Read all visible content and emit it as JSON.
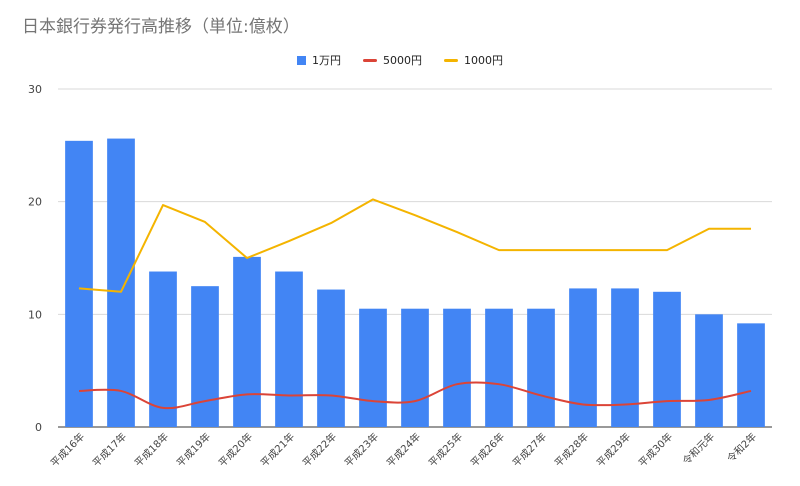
{
  "colors": {
    "bar": "#4285f4",
    "line5000": "#db4437",
    "line1000": "#f4b400",
    "grid": "#d9d9d9",
    "axis_text": "#444444",
    "title": "#757575"
  },
  "chart_data": {
    "type": "bar",
    "title": "日本銀行券発行高推移（単位:億枚）",
    "xlabel": "",
    "ylabel": "",
    "ylim": [
      0,
      30
    ],
    "yticks": [
      "0",
      "10",
      "20",
      "30"
    ],
    "grid": true,
    "legend_position": "top",
    "categories": [
      "平成16年",
      "平成17年",
      "平成18年",
      "平成19年",
      "平成20年",
      "平成21年",
      "平成22年",
      "平成23年",
      "平成24年",
      "平成25年",
      "平成26年",
      "平成27年",
      "平成28年",
      "平成29年",
      "平成30年",
      "令和元年",
      "令和2年"
    ],
    "series": [
      {
        "name": "1万円",
        "type": "bar",
        "values": [
          25.4,
          25.6,
          13.8,
          12.5,
          15.1,
          13.8,
          12.2,
          10.5,
          10.5,
          10.5,
          10.5,
          10.5,
          12.3,
          12.3,
          12.0,
          10.0,
          9.2
        ]
      },
      {
        "name": "5000円",
        "type": "line",
        "values": [
          3.2,
          3.2,
          1.7,
          2.3,
          2.9,
          2.8,
          2.8,
          2.3,
          2.3,
          3.8,
          3.8,
          2.8,
          2.0,
          2.0,
          2.3,
          2.4,
          3.2
        ]
      },
      {
        "name": "1000円",
        "type": "line",
        "values": [
          12.3,
          12.0,
          19.7,
          18.2,
          15.0,
          16.5,
          18.1,
          20.2,
          18.8,
          17.3,
          15.7,
          15.7,
          15.7,
          15.7,
          15.7,
          17.6,
          17.6
        ]
      }
    ]
  }
}
